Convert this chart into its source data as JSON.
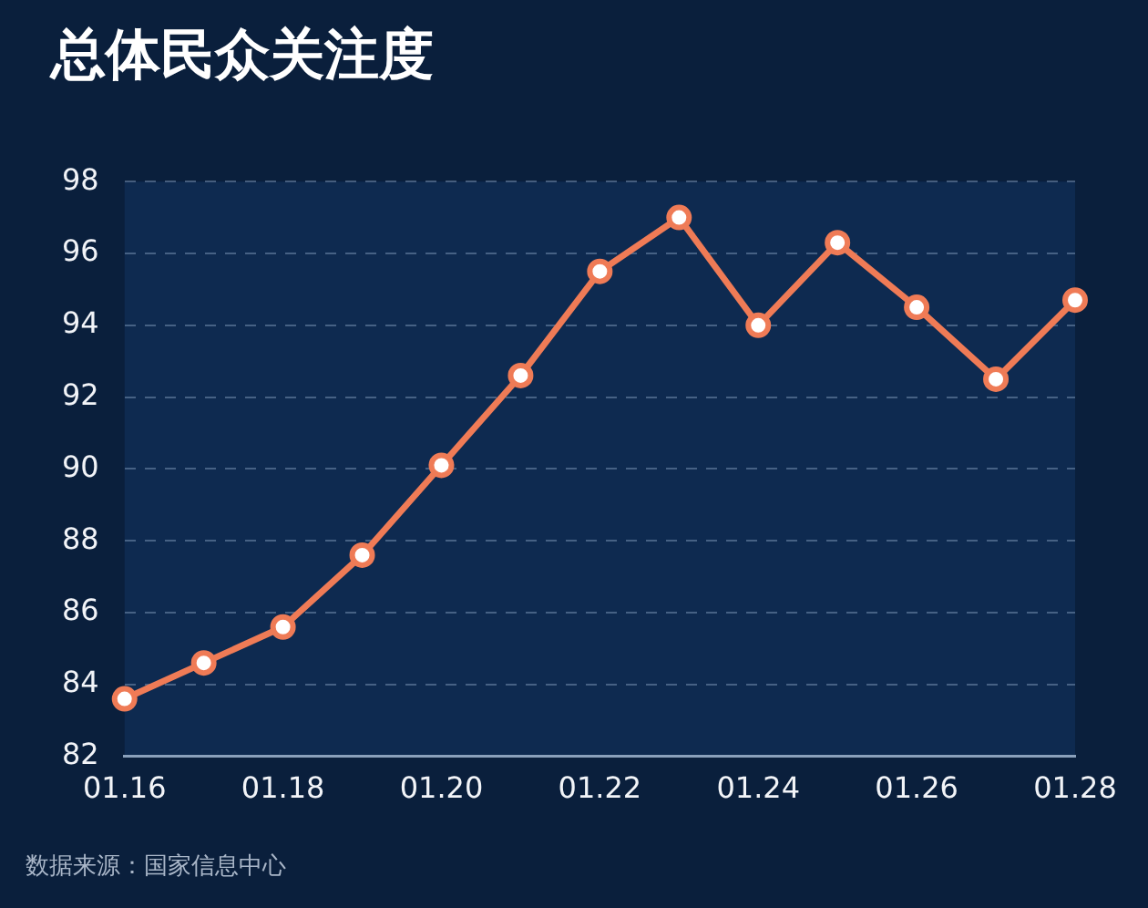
{
  "chart_data": {
    "type": "line",
    "title": "总体民众关注度",
    "categories": [
      "01.16",
      null,
      "01.18",
      null,
      "01.20",
      null,
      "01.22",
      null,
      "01.24",
      null,
      "01.26",
      null,
      "01.28"
    ],
    "series": [
      {
        "color": "#ef7b56",
        "values": [
          83.6,
          84.6,
          85.6,
          87.6,
          90.1,
          92.6,
          95.5,
          97.0,
          94.0,
          96.3,
          94.5,
          92.5,
          94.7
        ]
      }
    ],
    "ylim": [
      82,
      98
    ],
    "yticks": [
      82,
      84,
      86,
      88,
      90,
      92,
      94,
      96,
      98
    ],
    "grid": "y",
    "marker": "circle",
    "line_style": "solid",
    "legend": false,
    "annotations": [
      "数据来源：国家信息中心"
    ]
  }
}
